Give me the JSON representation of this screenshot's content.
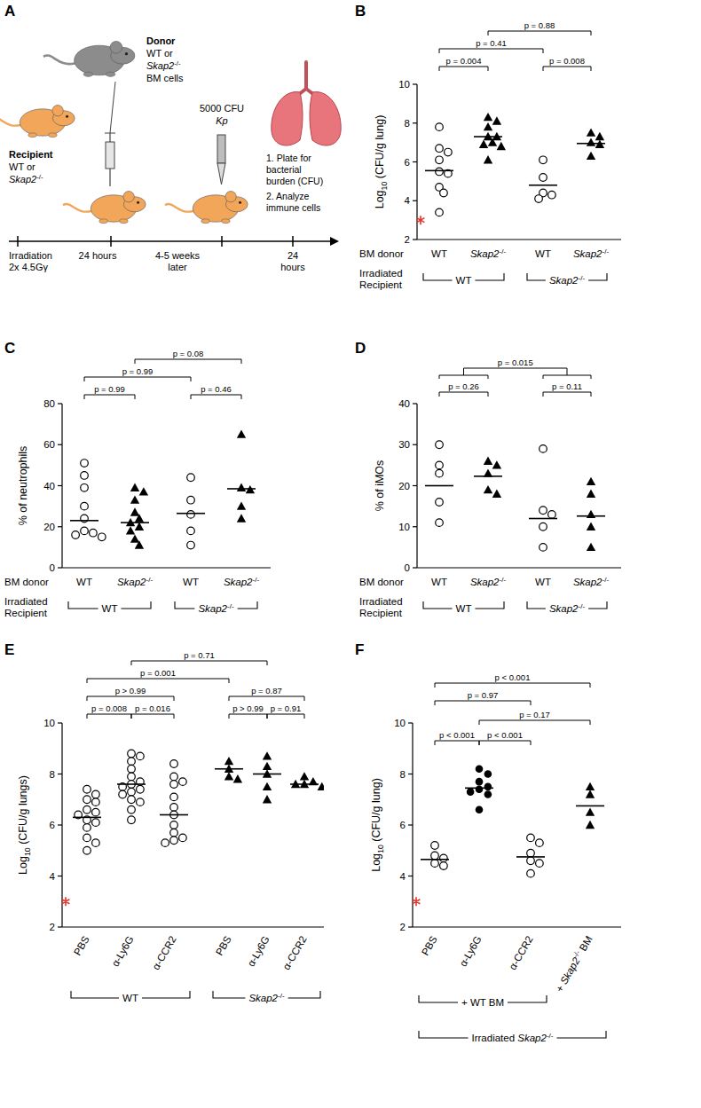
{
  "diagram": {
    "panel_label": "A",
    "donor": [
      "Donor",
      "WT or",
      "Skap2-/-",
      "BM cells"
    ],
    "recipient": [
      "Recipient",
      "WT or",
      "Skap2-/-"
    ],
    "infection": [
      "5000 CFU",
      "Kp"
    ],
    "readout": [
      "1. Plate for",
      "bacterial",
      "burden (CFU)",
      "2. Analyze",
      "immune cells"
    ],
    "timeline": [
      [
        "Irradiation",
        "2x 4.5Gγ"
      ],
      [
        "24 hours"
      ],
      [
        "4-5 weeks",
        "later"
      ],
      [
        "24",
        "hours"
      ]
    ]
  },
  "chart_data": [
    {
      "panel_label": "B",
      "type": "scatter",
      "y_label": "Log10 (CFU/g lung)",
      "ylim": [
        2,
        10
      ],
      "yticks": [
        2,
        4,
        6,
        8,
        10
      ],
      "detection_limit": 3,
      "groups": [
        {
          "label": "WT",
          "marker": "open-circle",
          "values": [
            7.8,
            6.7,
            6.5,
            6.1,
            5.5,
            5.4,
            4.7,
            4.4,
            3.4
          ],
          "center": 5.55
        },
        {
          "label": "Skap2-/-",
          "marker": "triangle",
          "values": [
            8.3,
            8.1,
            7.8,
            7.3,
            7.3,
            7.0,
            6.9,
            6.8,
            6.1
          ],
          "center": 7.3
        },
        {
          "label": "WT",
          "marker": "open-circle",
          "values": [
            6.1,
            5.2,
            4.4,
            4.3,
            4.1
          ],
          "center": 4.8
        },
        {
          "label": "Skap2-/-",
          "marker": "triangle",
          "values": [
            7.5,
            7.3,
            7.0,
            6.9,
            6.3
          ],
          "center": 6.95
        }
      ],
      "x_title": "BM donor",
      "bracket_title": [
        "Irradiated",
        "Recipient"
      ],
      "bracket_rows": [
        [
          {
            "label": "WT",
            "span": [
              0,
              1
            ]
          },
          {
            "label": "Skap2-/-",
            "span": [
              2,
              3
            ]
          }
        ]
      ],
      "comparisons": [
        {
          "from": 0,
          "to": 1,
          "label": "p = 0.004"
        },
        {
          "from": 2,
          "to": 3,
          "label": "p = 0.008"
        },
        {
          "from": 0,
          "to": 2,
          "label": "p = 0.41"
        },
        {
          "from": 1,
          "to": 3,
          "label": "p = 0.88"
        }
      ]
    },
    {
      "panel_label": "C",
      "type": "scatter",
      "y_label": "% of neutrophils",
      "ylim": [
        0,
        80
      ],
      "yticks": [
        0,
        20,
        40,
        60,
        80
      ],
      "groups": [
        {
          "label": "WT",
          "marker": "open-circle",
          "values": [
            51,
            45,
            39,
            30,
            24,
            18,
            17,
            16,
            15
          ],
          "center": 23
        },
        {
          "label": "Skap2-/-",
          "marker": "triangle",
          "values": [
            39,
            37,
            33,
            27,
            24,
            22,
            20,
            18,
            14,
            11
          ],
          "center": 22
        },
        {
          "label": "WT",
          "marker": "open-circle",
          "values": [
            44,
            33,
            26,
            18,
            11
          ],
          "center": 26.5
        },
        {
          "label": "Skap2-/-",
          "marker": "triangle",
          "values": [
            65,
            39,
            38,
            30,
            24
          ],
          "center": 38.5
        }
      ],
      "x_title": "BM donor",
      "bracket_title": [
        "Irradiated",
        "Recipient"
      ],
      "bracket_rows": [
        [
          {
            "label": "WT",
            "span": [
              0,
              1
            ]
          },
          {
            "label": "Skap2-/-",
            "span": [
              2,
              3
            ]
          }
        ]
      ],
      "comparisons": [
        {
          "from": 0,
          "to": 1,
          "label": "p = 0.99"
        },
        {
          "from": 2,
          "to": 3,
          "label": "p = 0.46"
        },
        {
          "from": 0,
          "to": 2,
          "label": "p = 0.99"
        },
        {
          "from": 1,
          "to": 3,
          "label": "p = 0.08"
        }
      ]
    },
    {
      "panel_label": "D",
      "type": "scatter",
      "y_label": "% of iMOs",
      "ylim": [
        0,
        40
      ],
      "yticks": [
        0,
        10,
        20,
        30,
        40
      ],
      "groups": [
        {
          "label": "WT",
          "marker": "open-circle",
          "values": [
            30,
            25,
            23,
            16,
            11
          ],
          "center": 20
        },
        {
          "label": "Skap2-/-",
          "marker": "triangle",
          "values": [
            26,
            25,
            23,
            19,
            18
          ],
          "center": 22.3
        },
        {
          "label": "WT",
          "marker": "open-circle",
          "values": [
            29,
            14,
            13,
            10,
            5
          ],
          "center": 12
        },
        {
          "label": "Skap2-/-",
          "marker": "triangle",
          "values": [
            21,
            18,
            13,
            10,
            5
          ],
          "center": 12.6
        }
      ],
      "x_title": "BM donor",
      "bracket_title": [
        "Irradiated",
        "Recipient"
      ],
      "bracket_rows": [
        [
          {
            "label": "WT",
            "span": [
              0,
              1
            ]
          },
          {
            "label": "Skap2-/-",
            "span": [
              2,
              3
            ]
          }
        ]
      ],
      "comparisons": [
        {
          "from": 0,
          "to": 1,
          "label": "p = 0.26"
        },
        {
          "from": 2,
          "to": 3,
          "label": "p = 0.11"
        },
        {
          "from": [
            0,
            1
          ],
          "to": [
            2,
            3
          ],
          "label": "p = 0.015"
        }
      ]
    },
    {
      "panel_label": "E",
      "type": "scatter",
      "y_label": "Log10 (CFU/g lungs)",
      "ylim": [
        2,
        10
      ],
      "yticks": [
        2,
        4,
        6,
        8,
        10
      ],
      "detection_limit": 3,
      "groups": [
        {
          "label": "PBS",
          "marker": "open-circle",
          "values": [
            7.4,
            7.2,
            7.0,
            6.9,
            6.6,
            6.5,
            6.4,
            6.2,
            6.1,
            5.9,
            5.5,
            5.3,
            5.0
          ],
          "center": 6.3
        },
        {
          "label": "α-Ly6G",
          "marker": "open-circle",
          "values": [
            8.8,
            8.7,
            8.5,
            8.2,
            7.9,
            7.7,
            7.6,
            7.5,
            7.4,
            7.3,
            7.2,
            7.0,
            6.9,
            6.6,
            6.2
          ],
          "center": 7.6
        },
        {
          "label": "α-CCR2",
          "marker": "open-circle",
          "values": [
            8.4,
            7.9,
            7.7,
            7.6,
            7.1,
            6.7,
            6.4,
            6.0,
            5.7,
            5.5,
            5.4,
            5.3
          ],
          "center": 6.4
        },
        {
          "label": "PBS",
          "marker": "triangle",
          "values": [
            8.5,
            8.2,
            7.9,
            7.8
          ],
          "center": 8.2
        },
        {
          "label": "α-Ly6G",
          "marker": "triangle",
          "values": [
            8.7,
            8.3,
            8.0,
            7.5,
            7.0
          ],
          "center": 8.0
        },
        {
          "label": "α-CCR2",
          "marker": "triangle",
          "values": [
            7.9,
            7.7,
            7.6,
            7.6,
            7.5
          ],
          "center": 7.6
        }
      ],
      "bracket_rows": [
        [
          {
            "label": "WT",
            "span": [
              0,
              2
            ]
          },
          {
            "label": "Skap2-/-",
            "span": [
              3,
              5
            ]
          }
        ]
      ],
      "comparisons": [
        {
          "from": 0,
          "to": 1,
          "label": "p = 0.008"
        },
        {
          "from": 1,
          "to": 2,
          "label": "p = 0.016"
        },
        {
          "from": 0,
          "to": 2,
          "label": "p > 0.99"
        },
        {
          "from": 0,
          "to": 3,
          "label": "p = 0.001"
        },
        {
          "from": 1,
          "to": 4,
          "label": "p = 0.71"
        },
        {
          "from": 3,
          "to": 4,
          "label": "p > 0.99"
        },
        {
          "from": 4,
          "to": 5,
          "label": "p = 0.91"
        },
        {
          "from": 3,
          "to": 5,
          "label": "p = 0.87"
        }
      ]
    },
    {
      "panel_label": "F",
      "type": "scatter",
      "y_label": "Log10 (CFU/g lung)",
      "ylim": [
        2,
        10
      ],
      "yticks": [
        2,
        4,
        6,
        8,
        10
      ],
      "detection_limit": 3,
      "groups": [
        {
          "label": "PBS",
          "marker": "open-circle",
          "values": [
            5.2,
            4.8,
            4.7,
            4.5,
            4.4
          ],
          "center": 4.65
        },
        {
          "label": "α-Ly6G",
          "marker": "circle",
          "values": [
            8.2,
            8.0,
            7.7,
            7.5,
            7.4,
            7.3,
            7.2,
            6.6
          ],
          "center": 7.45
        },
        {
          "label": "α-CCR2",
          "marker": "open-circle",
          "values": [
            5.5,
            5.3,
            4.9,
            4.6,
            4.5,
            4.1
          ],
          "center": 4.75
        },
        {
          "label": "+ Skap2-/- BM",
          "marker": "triangle",
          "values": [
            7.5,
            7.2,
            6.5,
            6.0
          ],
          "center": 6.75
        }
      ],
      "bracket_rows": [
        [
          {
            "label": "+ WT BM",
            "span": [
              0,
              2
            ]
          }
        ],
        [
          {
            "label": "Irradiated Skap2-/-",
            "span": [
              0,
              3
            ]
          }
        ]
      ],
      "comparisons": [
        {
          "from": 0,
          "to": 1,
          "label": "p < 0.001"
        },
        {
          "from": 1,
          "to": 2,
          "label": "p < 0.001"
        },
        {
          "from": 0,
          "to": 2,
          "label": "p = 0.97"
        },
        {
          "from": 1,
          "to": 3,
          "label": "p = 0.17"
        },
        {
          "from": 0,
          "to": 3,
          "label": "p < 0.001"
        }
      ]
    }
  ]
}
